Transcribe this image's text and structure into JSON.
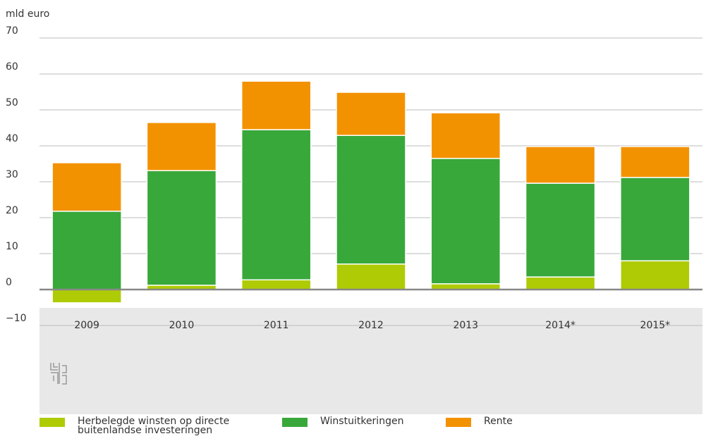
{
  "chart_data": {
    "type": "stacked-bar",
    "y_axis_label": "mld euro",
    "categories": [
      "2009",
      "2010",
      "2011",
      "2012",
      "2013",
      "2014*",
      "2015*"
    ],
    "series": [
      {
        "name": "Herbelegde winsten op directe buitenlandse investeringen",
        "color": "#afcb05",
        "values": [
          -3.7,
          1.2,
          2.7,
          7.1,
          1.6,
          3.5,
          8.0
        ]
      },
      {
        "name": "Winstuitkeringen",
        "color": "#38a83a",
        "values": [
          21.8,
          31.9,
          41.8,
          35.8,
          34.9,
          26.1,
          23.2
        ]
      },
      {
        "name": "Rente",
        "color": "#f39200",
        "values": [
          13.5,
          13.4,
          13.5,
          12.0,
          12.7,
          10.2,
          8.6
        ]
      }
    ],
    "ylim": [
      -10,
      70
    ],
    "yticks": [
      {
        "value": -10,
        "label": "−10"
      },
      0,
      10,
      20,
      30,
      40,
      50,
      60,
      70
    ],
    "grid": true
  }
}
